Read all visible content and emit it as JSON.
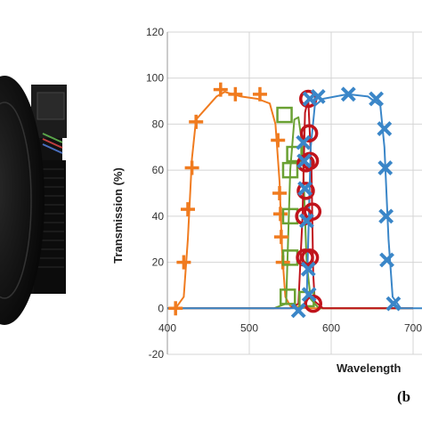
{
  "panel_label": "(b",
  "chart_data": {
    "type": "line",
    "title": "",
    "xlabel": "Wavelength",
    "ylabel": "Transmission (%)",
    "xlim": [
      400,
      800
    ],
    "ylim": [
      -20,
      120
    ],
    "x_ticks": [
      "400",
      "500",
      "600",
      "700"
    ],
    "y_ticks": [
      "-20",
      "0",
      "20",
      "40",
      "60",
      "80",
      "100",
      "120"
    ],
    "grid": true,
    "colors": {
      "orange": "#f07b1f",
      "green": "#6aa133",
      "red": "#c0141c",
      "blue": "#3a86c8"
    },
    "series": [
      {
        "marker": "plus",
        "color": "#f07b1f",
        "line": [
          [
            400,
            0
          ],
          [
            410,
            0
          ],
          [
            420,
            5
          ],
          [
            425,
            30
          ],
          [
            430,
            65
          ],
          [
            435,
            82
          ],
          [
            445,
            86
          ],
          [
            460,
            92
          ],
          [
            470,
            94
          ],
          [
            490,
            92
          ],
          [
            510,
            91
          ],
          [
            525,
            89
          ],
          [
            532,
            80
          ],
          [
            537,
            55
          ],
          [
            540,
            25
          ],
          [
            544,
            5
          ],
          [
            550,
            1
          ],
          [
            575,
            0
          ],
          [
            700,
            0
          ]
        ],
        "markers": [
          [
            410,
            0
          ],
          [
            420,
            20
          ],
          [
            425,
            43
          ],
          [
            430,
            61
          ],
          [
            435,
            81
          ],
          [
            465,
            95
          ],
          [
            483,
            93
          ],
          [
            513,
            93
          ],
          [
            535,
            73
          ],
          [
            537,
            50
          ],
          [
            538,
            41
          ],
          [
            539,
            31
          ],
          [
            541,
            20
          ]
        ]
      },
      {
        "marker": "square",
        "color": "#6aa133",
        "line": [
          [
            400,
            0
          ],
          [
            530,
            0
          ],
          [
            545,
            2
          ],
          [
            550,
            60
          ],
          [
            555,
            82
          ],
          [
            560,
            83
          ],
          [
            565,
            70
          ],
          [
            570,
            20
          ],
          [
            575,
            4
          ],
          [
            585,
            0
          ],
          [
            700,
            0
          ]
        ],
        "markers": [
          [
            543,
            84
          ],
          [
            555,
            67
          ],
          [
            550,
            60
          ],
          [
            550,
            40
          ],
          [
            550,
            22
          ],
          [
            547,
            5
          ],
          [
            570,
            4
          ]
        ]
      },
      {
        "marker": "circle",
        "color": "#c0141c",
        "line": [
          [
            400,
            0
          ],
          [
            550,
            0
          ],
          [
            560,
            2
          ],
          [
            565,
            40
          ],
          [
            568,
            85
          ],
          [
            572,
            91
          ],
          [
            576,
            60
          ],
          [
            578,
            15
          ],
          [
            580,
            3
          ],
          [
            590,
            0
          ],
          [
            700,
            0
          ]
        ],
        "markers": [
          [
            572,
            91
          ],
          [
            573,
            76
          ],
          [
            574,
            64
          ],
          [
            569,
            63
          ],
          [
            569,
            51
          ],
          [
            577,
            42
          ],
          [
            567,
            40
          ],
          [
            574,
            22
          ],
          [
            568,
            22
          ],
          [
            578,
            2
          ]
        ]
      },
      {
        "marker": "x",
        "color": "#3a86c8",
        "line": [
          [
            400,
            0
          ],
          [
            560,
            0
          ],
          [
            570,
            3
          ],
          [
            575,
            70
          ],
          [
            580,
            88
          ],
          [
            590,
            91
          ],
          [
            620,
            93
          ],
          [
            645,
            92
          ],
          [
            660,
            88
          ],
          [
            665,
            70
          ],
          [
            670,
            30
          ],
          [
            675,
            5
          ],
          [
            685,
            0
          ],
          [
            800,
            0
          ]
        ],
        "markers": [
          [
            560,
            -1
          ],
          [
            573,
            6
          ],
          [
            572,
            17
          ],
          [
            570,
            38
          ],
          [
            568,
            52
          ],
          [
            567,
            64
          ],
          [
            566,
            72
          ],
          [
            574,
            91
          ],
          [
            584,
            92
          ],
          [
            621,
            93
          ],
          [
            655,
            91
          ],
          [
            665,
            78
          ],
          [
            666,
            61
          ],
          [
            667,
            40
          ],
          [
            668,
            21
          ],
          [
            676,
            2
          ]
        ]
      }
    ]
  }
}
